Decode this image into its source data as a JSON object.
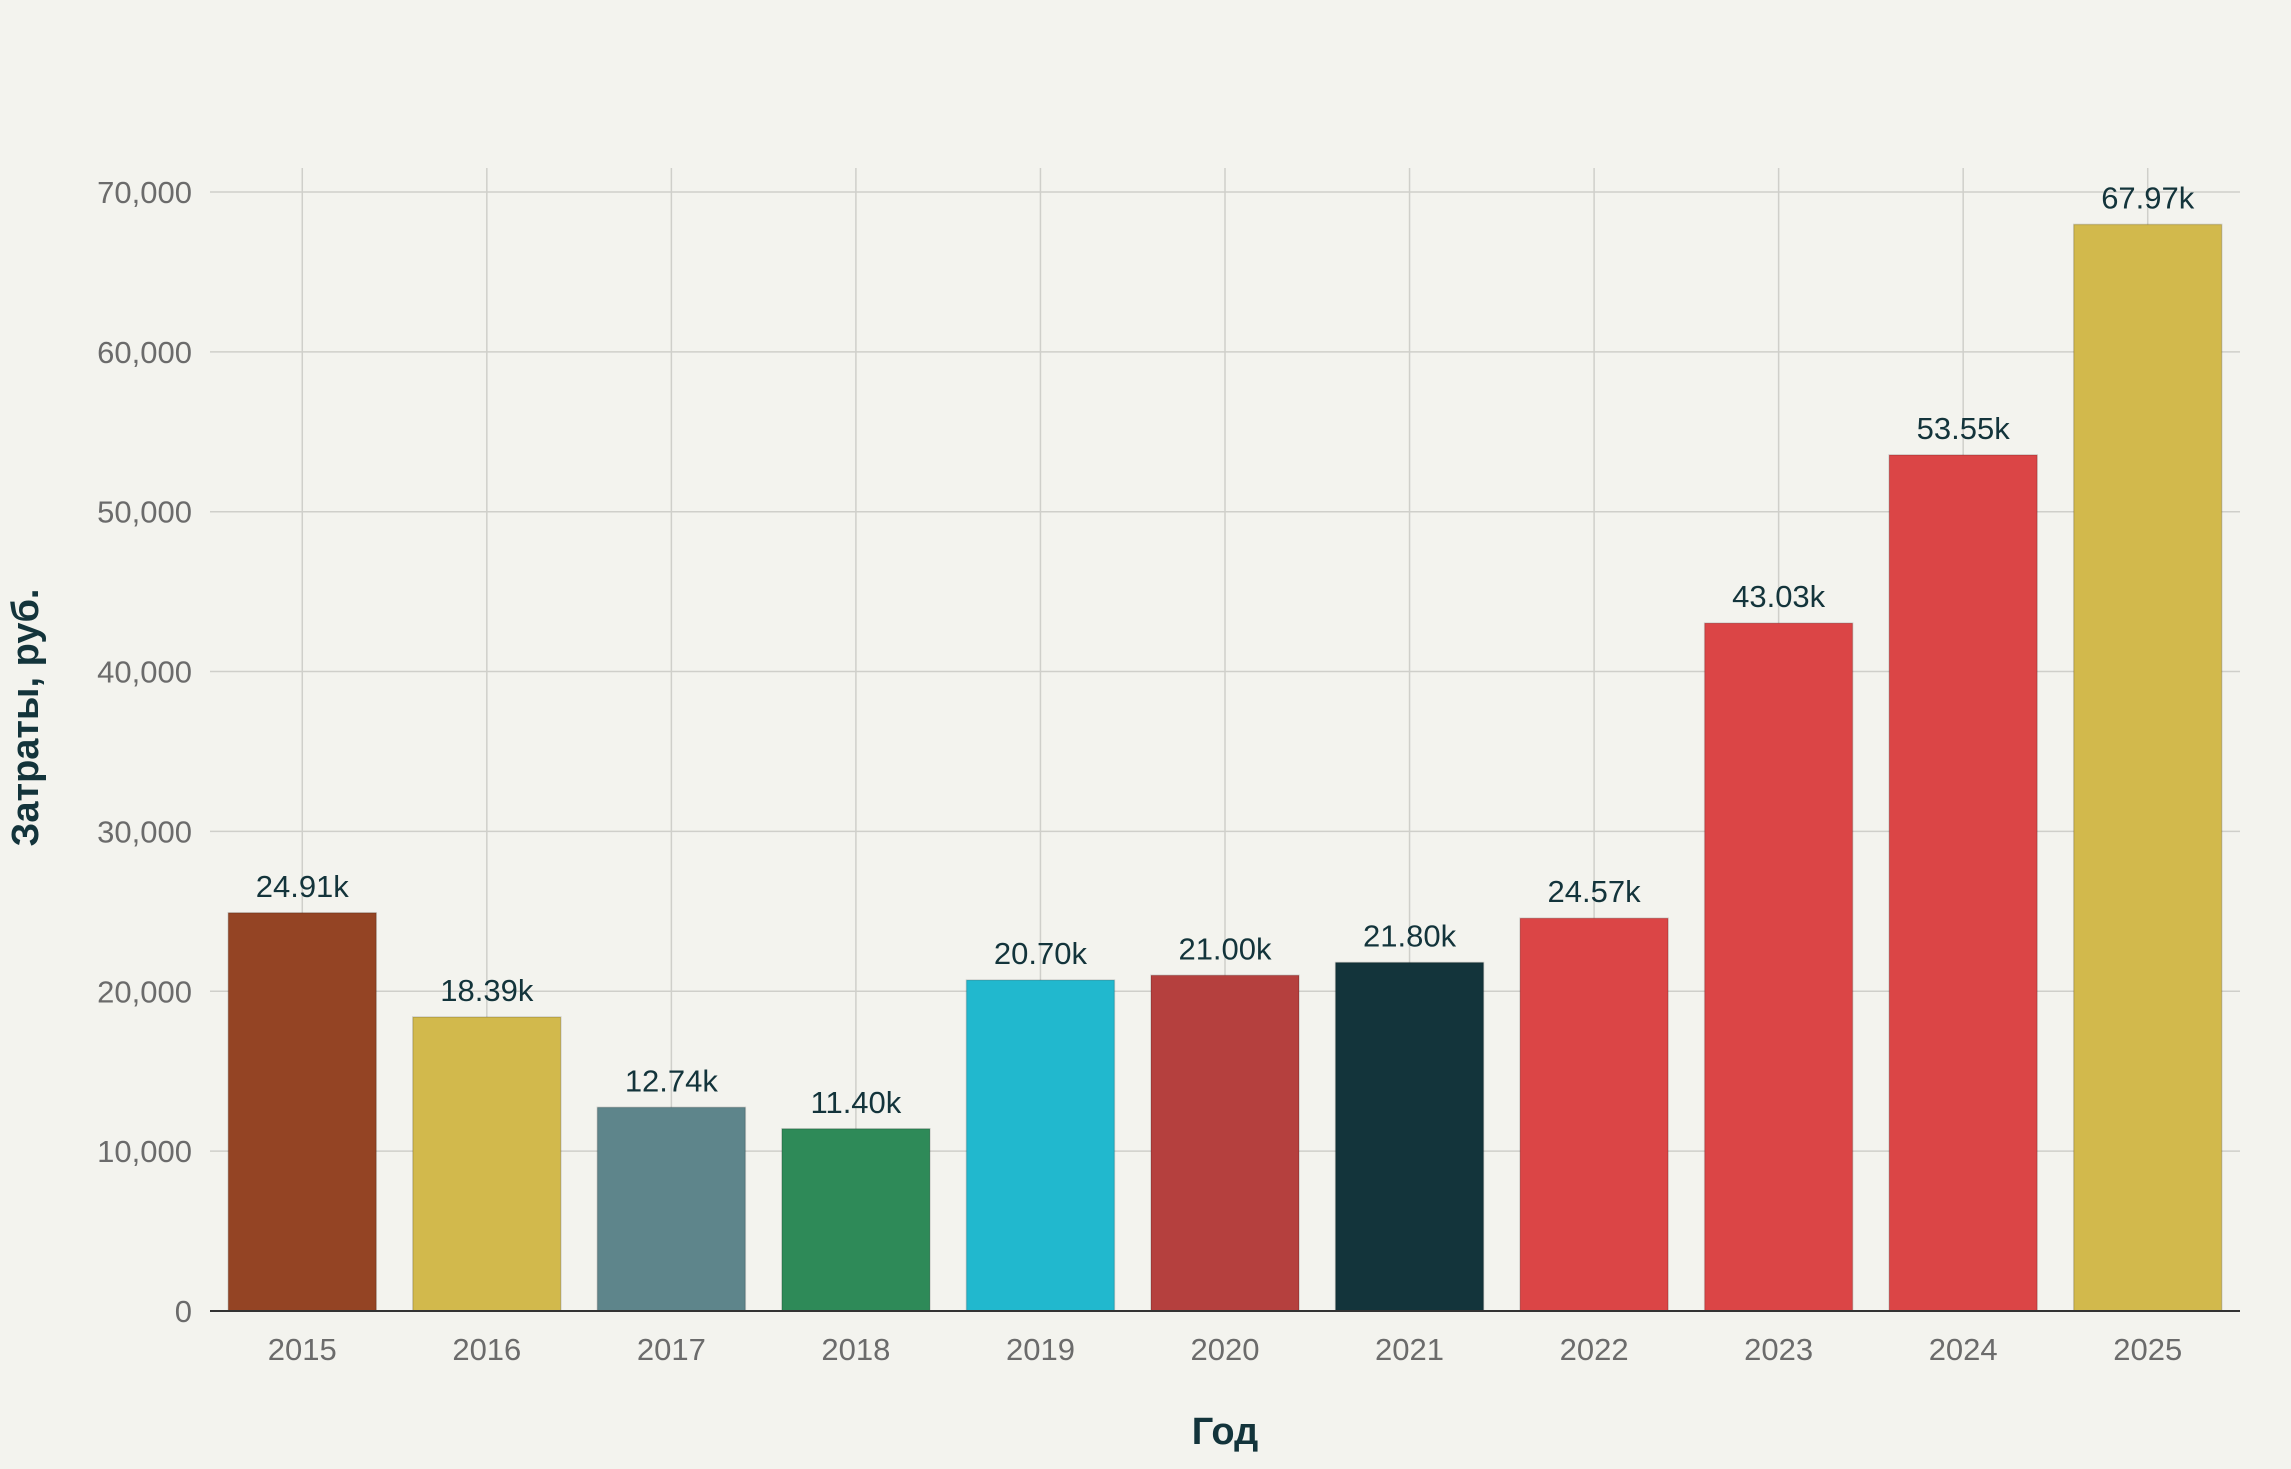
{
  "chart_data": {
    "type": "bar",
    "title": "",
    "xlabel": "Год",
    "ylabel": "Затраты, руб.",
    "categories": [
      "2015",
      "2016",
      "2017",
      "2018",
      "2019",
      "2020",
      "2021",
      "2022",
      "2023",
      "2024",
      "2025"
    ],
    "values": [
      24910,
      18390,
      12740,
      11400,
      20700,
      21000,
      21800,
      24570,
      43030,
      53550,
      67970
    ],
    "value_labels": [
      "24.91k",
      "18.39k",
      "12.74k",
      "11.40k",
      "20.70k",
      "21.00k",
      "21.80k",
      "24.57k",
      "43.03k",
      "53.55k",
      "67.97k"
    ],
    "bar_colors": [
      "#944424",
      "#d2b94c",
      "#5e858b",
      "#2e8a58",
      "#21b8ce",
      "#b5403e",
      "#13343b",
      "#db4546",
      "#db4546",
      "#db4546",
      "#d2b94c"
    ],
    "ylim": [
      0,
      71500
    ],
    "yticks": [
      0,
      10000,
      20000,
      30000,
      40000,
      50000,
      60000,
      70000
    ],
    "ytick_labels": [
      "0",
      "10,000",
      "20,000",
      "30,000",
      "40,000",
      "50,000",
      "60,000",
      "70,000"
    ],
    "grid": true,
    "legend": "none"
  }
}
